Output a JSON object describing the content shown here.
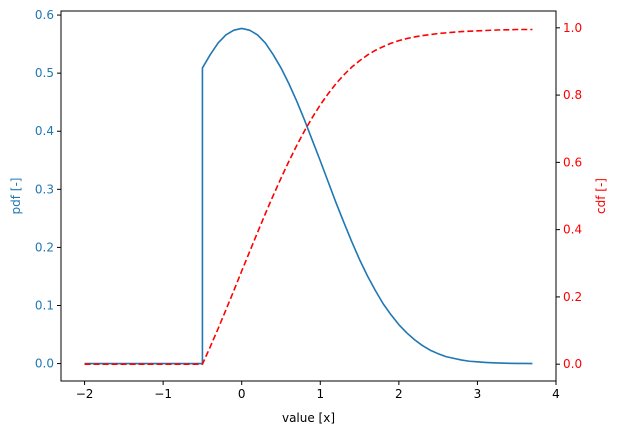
{
  "chart_data": {
    "type": "line",
    "title": "",
    "xlabel": "value [x]",
    "ylabel_left": "pdf [-]",
    "ylabel_right": "cdf [-]",
    "xlim": [
      -2.3,
      4.0
    ],
    "ylim_left": [
      -0.03,
      0.607
    ],
    "ylim_right": [
      -0.05,
      1.05
    ],
    "x_ticks": [
      -2,
      -1,
      0,
      1,
      2,
      3,
      4
    ],
    "x_tick_labels": [
      "−2",
      "−1",
      "0",
      "1",
      "2",
      "3",
      "4"
    ],
    "y_left_ticks": [
      0.0,
      0.1,
      0.2,
      0.3,
      0.4,
      0.5,
      0.6
    ],
    "y_left_tick_labels": [
      "0.0",
      "0.1",
      "0.2",
      "0.3",
      "0.4",
      "0.5",
      "0.6"
    ],
    "y_right_ticks": [
      0.0,
      0.2,
      0.4,
      0.6,
      0.8,
      1.0
    ],
    "y_right_tick_labels": [
      "0.0",
      "0.2",
      "0.4",
      "0.6",
      "0.8",
      "1.0"
    ],
    "grid": false,
    "legend": "none",
    "colors": {
      "pdf": "#1f77b4",
      "cdf": "#ff0000",
      "axis": "#000000"
    },
    "series": [
      {
        "axis": "left",
        "style": "solid",
        "x": [
          -2.0,
          -0.5,
          -0.5,
          -0.4,
          -0.3,
          -0.2,
          -0.1,
          0.0,
          0.1,
          0.2,
          0.3,
          0.4,
          0.5,
          0.6,
          0.7,
          0.8,
          0.9,
          1.0,
          1.1,
          1.2,
          1.3,
          1.4,
          1.5,
          1.6,
          1.7,
          1.8,
          1.9,
          2.0,
          2.1,
          2.2,
          2.3,
          2.4,
          2.5,
          2.6,
          2.7,
          2.8,
          2.9,
          3.0,
          3.1,
          3.2,
          3.3,
          3.4,
          3.5,
          3.6,
          3.7
        ],
        "values": [
          0.0,
          0.0,
          0.509,
          0.532,
          0.552,
          0.566,
          0.574,
          0.577,
          0.574,
          0.566,
          0.552,
          0.532,
          0.509,
          0.482,
          0.452,
          0.419,
          0.384,
          0.349,
          0.313,
          0.277,
          0.243,
          0.21,
          0.179,
          0.151,
          0.126,
          0.103,
          0.084,
          0.067,
          0.053,
          0.041,
          0.031,
          0.023,
          0.017,
          0.012,
          0.009,
          0.006,
          0.004,
          0.003,
          0.002,
          0.0013,
          0.0008,
          0.0005,
          0.0003,
          0.0002,
          0.0001
        ]
      },
      {
        "axis": "right",
        "style": "dashed",
        "x": [
          -2.0,
          -0.5,
          -0.4,
          -0.3,
          -0.2,
          -0.1,
          0.0,
          0.1,
          0.2,
          0.3,
          0.4,
          0.5,
          0.6,
          0.7,
          0.8,
          0.9,
          1.0,
          1.1,
          1.2,
          1.3,
          1.4,
          1.5,
          1.6,
          1.7,
          1.8,
          1.9,
          2.0,
          2.1,
          2.2,
          2.3,
          2.4,
          2.5,
          2.6,
          2.7,
          2.8,
          2.9,
          3.0,
          3.1,
          3.2,
          3.3,
          3.4,
          3.5,
          3.6,
          3.7
        ],
        "values": [
          0.0,
          0.0,
          0.052,
          0.106,
          0.162,
          0.219,
          0.277,
          0.334,
          0.391,
          0.447,
          0.501,
          0.553,
          0.603,
          0.65,
          0.694,
          0.734,
          0.771,
          0.804,
          0.834,
          0.86,
          0.883,
          0.902,
          0.919,
          0.933,
          0.944,
          0.954,
          0.962,
          0.968,
          0.973,
          0.977,
          0.98,
          0.983,
          0.985,
          0.987,
          0.989,
          0.99,
          0.991,
          0.992,
          0.993,
          0.994,
          0.994,
          0.995,
          0.995,
          0.995
        ]
      }
    ]
  }
}
